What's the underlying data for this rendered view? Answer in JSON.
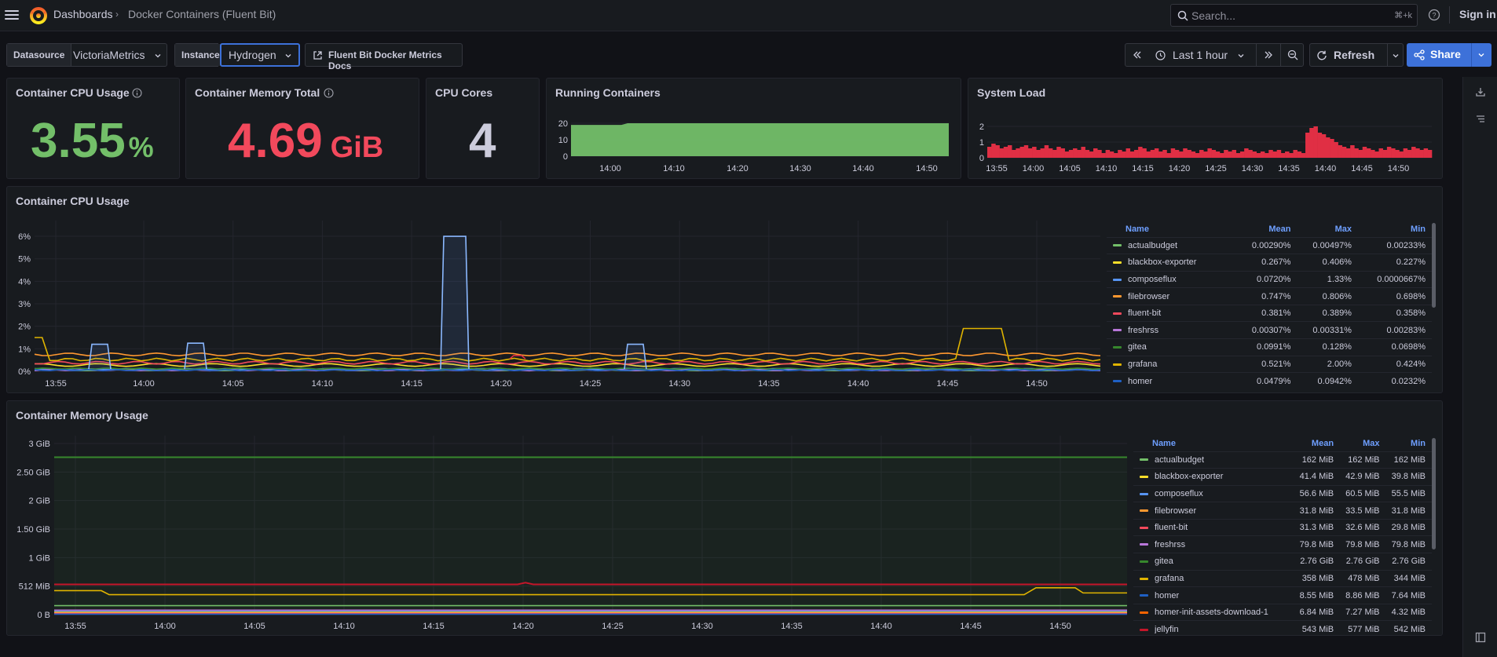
{
  "header": {
    "breadcrumb_root": "Dashboards",
    "breadcrumb_current": "Docker Containers (Fluent Bit)",
    "search_placeholder": "Search...",
    "search_shortcut": "⌘+k",
    "signin_label": "Sign in"
  },
  "controls": {
    "datasource_label": "Datasource",
    "datasource_value": "VictoriaMetrics",
    "instance_label": "Instance",
    "instance_value": "Hydrogen",
    "docs_link": "Fluent Bit Docker Metrics Docs",
    "time_range": "Last 1 hour",
    "refresh_label": "Refresh",
    "share_label": "Share"
  },
  "stats": {
    "cpu_usage": {
      "title": "Container CPU Usage",
      "value": "3.55",
      "unit": "%",
      "color": "#73bf69"
    },
    "memory_total": {
      "title": "Container Memory Total",
      "value": "4.69",
      "unit": "GiB",
      "color": "#f2495c"
    },
    "cpu_cores": {
      "title": "CPU Cores",
      "value": "4",
      "color": "#ccccdc"
    }
  },
  "running_containers": {
    "title": "Running Containers",
    "chart_data": {
      "type": "area",
      "yticks": [
        "0",
        "10",
        "20"
      ],
      "ylim": [
        0,
        20
      ],
      "xticks": [
        "14:00",
        "14:10",
        "14:20",
        "14:30",
        "14:40",
        "14:50"
      ],
      "values": [
        19,
        19,
        19,
        19,
        19,
        19,
        19,
        19,
        19,
        20,
        20,
        20,
        20,
        20,
        20,
        20,
        20,
        20,
        20,
        20,
        20,
        20,
        20,
        20,
        20,
        20,
        20,
        20,
        20,
        20,
        20,
        20,
        20,
        20,
        20,
        20,
        20,
        20,
        20,
        20,
        20,
        20,
        20,
        20,
        20,
        20,
        20,
        20,
        20,
        20,
        20,
        20,
        20,
        20,
        20,
        20,
        20,
        20,
        20,
        20,
        20
      ],
      "color": "#73bf69"
    }
  },
  "system_load": {
    "title": "System Load",
    "chart_data": {
      "type": "bar",
      "yticks": [
        "0",
        "1",
        "2"
      ],
      "ylim": [
        0,
        2.2
      ],
      "xticks": [
        "13:55",
        "14:00",
        "14:05",
        "14:10",
        "14:15",
        "14:20",
        "14:25",
        "14:30",
        "14:35",
        "14:40",
        "14:45",
        "14:50"
      ],
      "values": [
        0.7,
        0.9,
        0.8,
        0.6,
        0.7,
        0.8,
        0.5,
        0.6,
        0.7,
        0.8,
        0.6,
        0.7,
        0.5,
        0.6,
        0.8,
        0.6,
        0.5,
        0.7,
        0.6,
        0.4,
        0.5,
        0.6,
        0.5,
        0.7,
        0.5,
        0.4,
        0.6,
        0.5,
        0.3,
        0.5,
        0.4,
        0.3,
        0.5,
        0.4,
        0.6,
        0.4,
        0.5,
        0.7,
        0.6,
        0.4,
        0.5,
        0.6,
        0.4,
        0.5,
        0.3,
        0.6,
        0.5,
        0.4,
        0.6,
        0.5,
        0.4,
        0.3,
        0.5,
        0.4,
        0.6,
        0.5,
        0.4,
        0.3,
        0.5,
        0.4,
        0.5,
        0.3,
        0.4,
        0.6,
        0.5,
        0.4,
        0.3,
        0.4,
        0.3,
        0.5,
        0.4,
        0.5,
        0.3,
        0.4,
        0.3,
        0.5,
        0.4,
        0.3,
        1.6,
        1.9,
        2.0,
        1.6,
        1.5,
        1.3,
        1.2,
        1.0,
        0.8,
        0.7,
        0.6,
        0.8,
        0.6,
        0.5,
        0.7,
        0.6,
        0.5,
        0.4,
        0.6,
        0.5,
        0.7,
        0.6,
        0.5,
        0.4,
        0.6,
        0.5,
        0.7,
        0.6,
        0.5,
        0.6,
        0.5
      ],
      "color": "#e02f44"
    }
  },
  "cpu_chart": {
    "title": "Container CPU Usage",
    "chart_data": {
      "type": "line",
      "yticks": [
        "0%",
        "1%",
        "2%",
        "3%",
        "4%",
        "5%",
        "6%"
      ],
      "ylim": [
        0,
        6.5
      ],
      "xticks": [
        "13:55",
        "14:00",
        "14:05",
        "14:10",
        "14:15",
        "14:20",
        "14:25",
        "14:30",
        "14:35",
        "14:40",
        "14:45",
        "14:50"
      ]
    },
    "legend": {
      "headers": [
        "Name",
        "Mean",
        "Max",
        "Min"
      ],
      "rows": [
        {
          "name": "actualbudget",
          "color": "#73bf69",
          "mean": "0.00290%",
          "max": "0.00497%",
          "min": "0.00233%"
        },
        {
          "name": "blackbox-exporter",
          "color": "#fade2a",
          "mean": "0.267%",
          "max": "0.406%",
          "min": "0.227%"
        },
        {
          "name": "composeflux",
          "color": "#5794f2",
          "mean": "0.0720%",
          "max": "1.33%",
          "min": "0.0000667%"
        },
        {
          "name": "filebrowser",
          "color": "#ff9830",
          "mean": "0.747%",
          "max": "0.806%",
          "min": "0.698%"
        },
        {
          "name": "fluent-bit",
          "color": "#f2495c",
          "mean": "0.381%",
          "max": "0.389%",
          "min": "0.358%"
        },
        {
          "name": "freshrss",
          "color": "#b877d9",
          "mean": "0.00307%",
          "max": "0.00331%",
          "min": "0.00283%"
        },
        {
          "name": "gitea",
          "color": "#37872d",
          "mean": "0.0991%",
          "max": "0.128%",
          "min": "0.0698%"
        },
        {
          "name": "grafana",
          "color": "#e0b400",
          "mean": "0.521%",
          "max": "2.00%",
          "min": "0.424%"
        },
        {
          "name": "homer",
          "color": "#1f60c4",
          "mean": "0.0479%",
          "max": "0.0942%",
          "min": "0.0232%"
        }
      ]
    }
  },
  "mem_chart": {
    "title": "Container Memory Usage",
    "chart_data": {
      "type": "line",
      "yticks": [
        "0 B",
        "512 MiB",
        "1 GiB",
        "1.50 GiB",
        "2 GiB",
        "2.50 GiB",
        "3 GiB"
      ],
      "ylim": [
        0,
        3
      ],
      "xticks": [
        "13:55",
        "14:00",
        "14:05",
        "14:10",
        "14:15",
        "14:20",
        "14:25",
        "14:30",
        "14:35",
        "14:40",
        "14:45",
        "14:50"
      ]
    },
    "legend": {
      "headers": [
        "Name",
        "Mean",
        "Max",
        "Min"
      ],
      "rows": [
        {
          "name": "actualbudget",
          "color": "#73bf69",
          "mean": "162 MiB",
          "max": "162 MiB",
          "min": "162 MiB"
        },
        {
          "name": "blackbox-exporter",
          "color": "#fade2a",
          "mean": "41.4 MiB",
          "max": "42.9 MiB",
          "min": "39.8 MiB"
        },
        {
          "name": "composeflux",
          "color": "#5794f2",
          "mean": "56.6 MiB",
          "max": "60.5 MiB",
          "min": "55.5 MiB"
        },
        {
          "name": "filebrowser",
          "color": "#ff9830",
          "mean": "31.8 MiB",
          "max": "33.5 MiB",
          "min": "31.8 MiB"
        },
        {
          "name": "fluent-bit",
          "color": "#f2495c",
          "mean": "31.3 MiB",
          "max": "32.6 MiB",
          "min": "29.8 MiB"
        },
        {
          "name": "freshrss",
          "color": "#b877d9",
          "mean": "79.8 MiB",
          "max": "79.8 MiB",
          "min": "79.8 MiB"
        },
        {
          "name": "gitea",
          "color": "#37872d",
          "mean": "2.76 GiB",
          "max": "2.76 GiB",
          "min": "2.76 GiB"
        },
        {
          "name": "grafana",
          "color": "#e0b400",
          "mean": "358 MiB",
          "max": "478 MiB",
          "min": "344 MiB"
        },
        {
          "name": "homer",
          "color": "#1f60c4",
          "mean": "8.55 MiB",
          "max": "8.86 MiB",
          "min": "7.64 MiB"
        },
        {
          "name": "homer-init-assets-download-1",
          "color": "#fa6400",
          "mean": "6.84 MiB",
          "max": "7.27 MiB",
          "min": "4.32 MiB"
        },
        {
          "name": "jellyfin",
          "color": "#c4162a",
          "mean": "543 MiB",
          "max": "577 MiB",
          "min": "542 MiB"
        }
      ]
    }
  }
}
